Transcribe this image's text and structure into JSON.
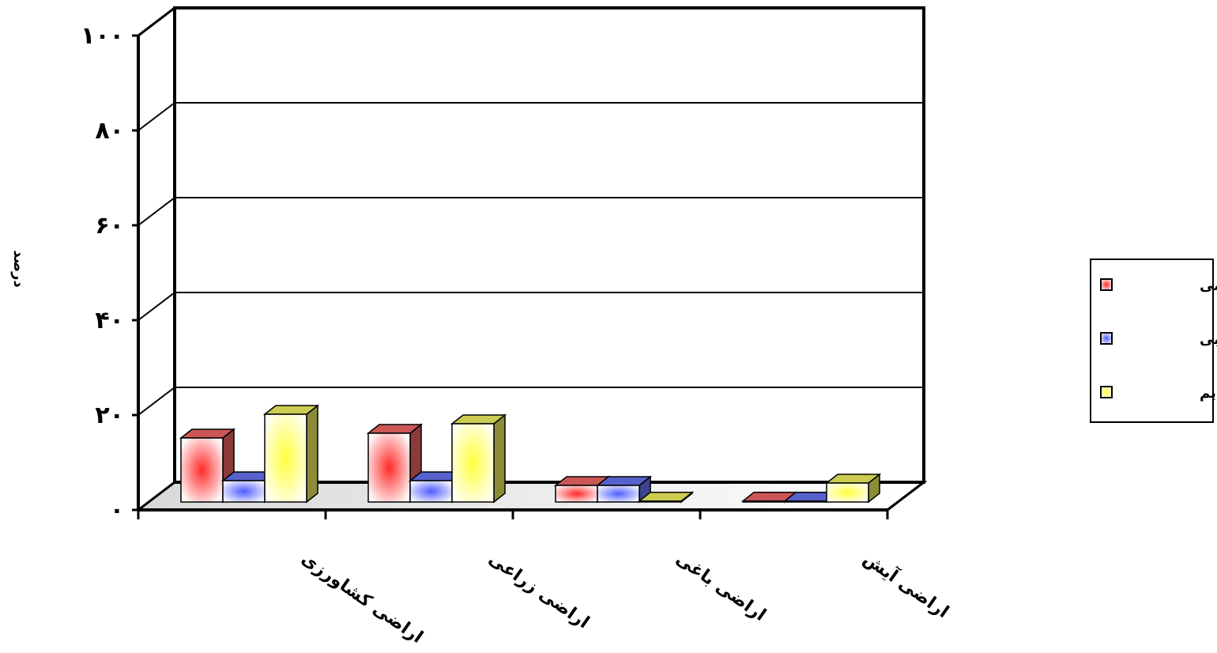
{
  "chart_data": {
    "type": "bar",
    "style": "3d-clustered",
    "ylabel": "درصد",
    "ylim": [
      0,
      100
    ],
    "yticks": [
      "۰",
      "۲۰",
      "۴۰",
      "۶۰",
      "۸۰",
      "۱۰۰"
    ],
    "grid": true,
    "legend_position": "right",
    "categories": [
      "اراضی کشاورزی",
      "اراضی زراعی",
      "اراضی باغی",
      "اراضی آیش"
    ],
    "series": [
      {
        "name": "کل اراضی",
        "color": "#ff6b6b",
        "values": [
          13.5,
          14.5,
          3.5,
          0.2
        ]
      },
      {
        "name": "اراضی آبی",
        "color": "#6b7bff",
        "values": [
          4.5,
          4.5,
          3.5,
          0.2
        ]
      },
      {
        "name": "اراضی دیم",
        "color": "#ffff66",
        "values": [
          18.5,
          16.5,
          0.2,
          4
        ]
      }
    ]
  }
}
